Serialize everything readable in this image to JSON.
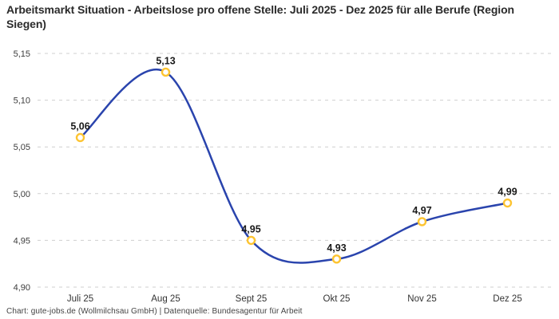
{
  "header": {
    "title": "Arbeitsmarkt Situation - Arbeitslose pro offene Stelle: Juli 2025 - Dez 2025 für alle Berufe (Region Siegen)"
  },
  "footer": {
    "attribution": "Chart: gute-jobs.de (Wollmilchsau GmbH) | Datenquelle: Bundesagentur für Arbeit"
  },
  "chart_data": {
    "type": "line",
    "title": "Arbeitsmarkt Situation - Arbeitslose pro offene Stelle: Juli 2025 - Dez 2025 für alle Berufe (Region Siegen)",
    "categories": [
      "Juli 25",
      "Aug 25",
      "Sept 25",
      "Okt 25",
      "Nov 25",
      "Dez 25"
    ],
    "series": [
      {
        "name": "Arbeitslose pro offene Stelle",
        "values": [
          5.06,
          5.13,
          4.95,
          4.93,
          4.97,
          4.99
        ],
        "value_labels": [
          "5,06",
          "5,13",
          "4,95",
          "4,93",
          "4,97",
          "4,99"
        ]
      }
    ],
    "xlabel": "",
    "ylabel": "",
    "ylim": [
      4.9,
      5.15
    ],
    "yticks": [
      4.9,
      4.95,
      5.0,
      5.05,
      5.1,
      5.15
    ],
    "ytick_labels": [
      "4,90",
      "4,95",
      "5,00",
      "5,05",
      "5,10",
      "5,15"
    ],
    "grid": "horizontal-dashed",
    "legend": "none",
    "line_smoothing": "spline",
    "colors": {
      "line": "#2a44ad",
      "marker_fill": "#ffffff",
      "marker_stroke": "#fdc431",
      "gridline": "#cfcfcf",
      "data_label": "#1a1a1a"
    }
  }
}
